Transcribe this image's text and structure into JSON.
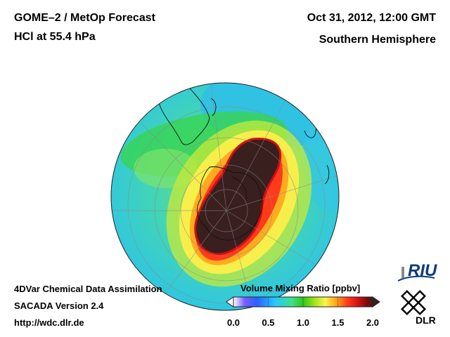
{
  "header": {
    "title_line1": "GOME–2 / MetOp Forecast",
    "title_line2": "HCl at 55.4 hPa",
    "date": "Oct 31, 2012, 12:00 GMT",
    "region": "Southern Hemisphere"
  },
  "footer": {
    "line1": "4DVar Chemical Data Assimilation",
    "line2": "SACADA Version 2.4",
    "line3": "http://wdc.dlr.de"
  },
  "colorbar": {
    "title": "Volume Mixing Ratio [ppbv]",
    "min": 0.0,
    "max": 2.0,
    "ticks": [
      "0.0",
      "0.5",
      "1.0",
      "1.5",
      "2.0"
    ],
    "colors": [
      "#ffffff",
      "#7a5cff",
      "#2a63ff",
      "#27c8ff",
      "#3fe08a",
      "#2ec71a",
      "#9be41e",
      "#fff34a",
      "#ffa11a",
      "#ff3a1a",
      "#d10f12",
      "#7a0c0c",
      "#3a1f1f"
    ]
  },
  "logos": {
    "riu": "RIU",
    "dlr": "DLR"
  }
}
